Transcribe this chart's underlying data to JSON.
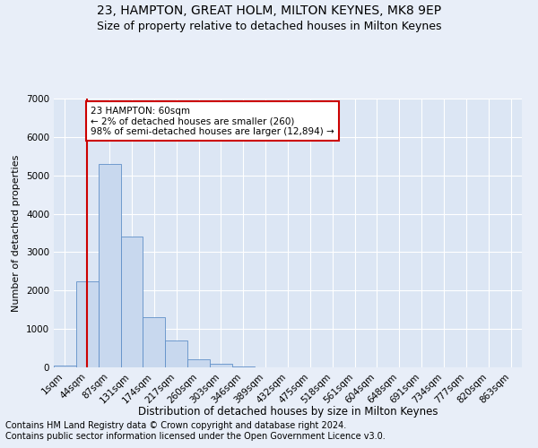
{
  "title": "23, HAMPTON, GREAT HOLM, MILTON KEYNES, MK8 9EP",
  "subtitle": "Size of property relative to detached houses in Milton Keynes",
  "xlabel": "Distribution of detached houses by size in Milton Keynes",
  "ylabel": "Number of detached properties",
  "bar_color": "#c8d8ee",
  "bar_edge_color": "#6090c8",
  "categories": [
    "1sqm",
    "44sqm",
    "87sqm",
    "131sqm",
    "174sqm",
    "217sqm",
    "260sqm",
    "303sqm",
    "346sqm",
    "389sqm",
    "432sqm",
    "475sqm",
    "518sqm",
    "561sqm",
    "604sqm",
    "648sqm",
    "691sqm",
    "734sqm",
    "777sqm",
    "820sqm",
    "863sqm"
  ],
  "values": [
    50,
    2250,
    5300,
    3400,
    1300,
    700,
    200,
    90,
    30,
    5,
    0,
    0,
    0,
    0,
    0,
    0,
    0,
    0,
    0,
    0,
    0
  ],
  "ylim": [
    0,
    7000
  ],
  "yticks": [
    0,
    1000,
    2000,
    3000,
    4000,
    5000,
    6000,
    7000
  ],
  "annotation_text": "23 HAMPTON: 60sqm\n← 2% of detached houses are smaller (260)\n98% of semi-detached houses are larger (12,894) →",
  "vline_x": 1,
  "annotation_box_color": "#ffffff",
  "annotation_box_edge": "#cc0000",
  "vline_color": "#cc0000",
  "footer_line1": "Contains HM Land Registry data © Crown copyright and database right 2024.",
  "footer_line2": "Contains public sector information licensed under the Open Government Licence v3.0.",
  "bg_color": "#e8eef8",
  "plot_bg_color": "#dce6f4",
  "grid_color": "#ffffff",
  "title_fontsize": 10,
  "subtitle_fontsize": 9,
  "xlabel_fontsize": 8.5,
  "ylabel_fontsize": 8,
  "tick_fontsize": 7.5,
  "footer_fontsize": 7,
  "annotation_fontsize": 7.5
}
